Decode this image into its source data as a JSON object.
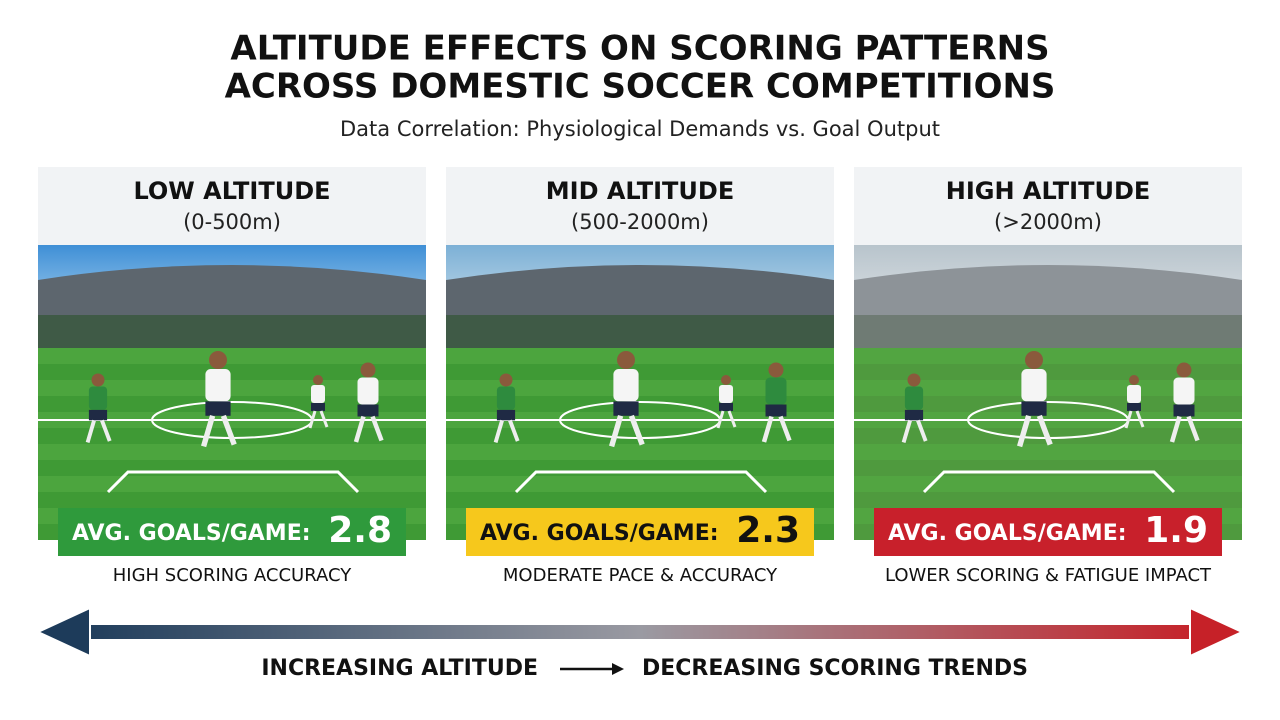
{
  "header": {
    "title_lines": [
      "ALTITUDE EFFECTS ON SCORING PATTERNS",
      "ACROSS DOMESTIC SOCCER COMPETITIONS"
    ],
    "subtitle": "Data Correlation: Physiological Demands vs. Goal Output"
  },
  "panels": [
    {
      "title": "LOW ALTITUDE",
      "range": "(0-500m)",
      "label": "AVG. GOALS/GAME:",
      "value": 2.8,
      "caption": "HIGH SCORING ACCURACY",
      "color": "#2f9a3c"
    },
    {
      "title": "MID ALTITUDE",
      "range": "(500-2000m)",
      "label": "AVG. GOALS/GAME:",
      "value": 2.3,
      "caption": "MODERATE PACE & ACCURACY",
      "color": "#f6c81c"
    },
    {
      "title": "HIGH ALTITUDE",
      "range": "(>2000m)",
      "label": "AVG. GOALS/GAME:",
      "value": 1.9,
      "caption": "LOWER SCORING & FATIGUE IMPACT",
      "color": "#c8202b"
    }
  ],
  "footer": {
    "left": "INCREASING ALTITUDE",
    "right": "DECREASING SCORING TRENDS"
  }
}
